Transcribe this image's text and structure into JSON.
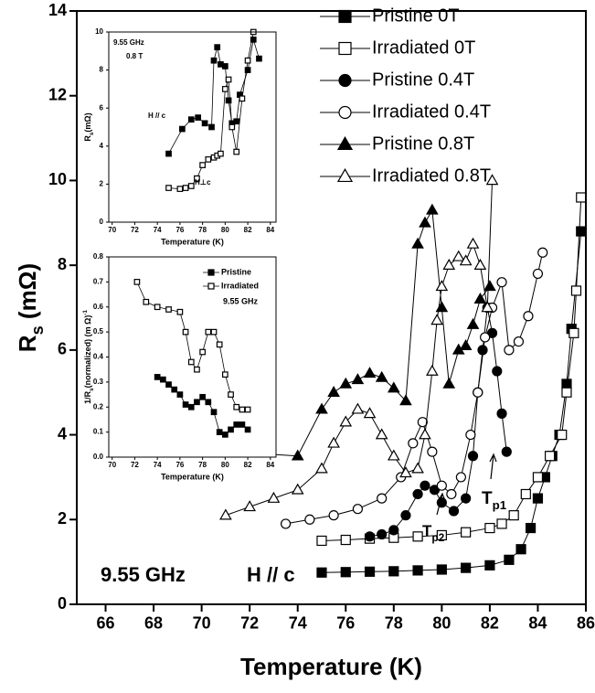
{
  "chart_data": [
    {
      "type": "line",
      "x_label": "Temperature (K)",
      "y_label": [
        {
          "text": "R"
        },
        {
          "text": "s",
          "script": "sub"
        },
        {
          "text": " (mΩ)"
        }
      ],
      "xlim": [
        64.8,
        86
      ],
      "xticks": [
        66,
        68,
        70,
        72,
        74,
        76,
        78,
        80,
        82,
        84,
        86
      ],
      "ylim": [
        0,
        14
      ],
      "yticks": [
        0,
        2,
        4,
        6,
        8,
        10,
        12,
        14
      ],
      "legend": "upper right",
      "annotations": [
        {
          "text": "9.55 GHz"
        },
        {
          "text": "H // c"
        },
        {
          "parts": [
            {
              "text": "T"
            },
            {
              "text": "p2",
              "script": "sub"
            }
          ]
        },
        {
          "parts": [
            {
              "text": "T"
            },
            {
              "text": "p1",
              "script": "sub"
            }
          ]
        }
      ],
      "series": [
        {
          "name": "Pristine 0T",
          "marker": "square",
          "filled": true,
          "color": "#000000",
          "x": [
            75,
            76,
            77,
            78,
            79,
            80,
            81,
            82,
            82.8,
            83.3,
            83.7,
            84,
            84.3,
            84.6,
            84.9,
            85.2,
            85.4,
            85.8
          ],
          "values": [
            0.75,
            0.76,
            0.77,
            0.78,
            0.8,
            0.82,
            0.86,
            0.92,
            1.05,
            1.3,
            1.8,
            2.5,
            3.0,
            3.5,
            4.0,
            5.2,
            6.5,
            8.8
          ]
        },
        {
          "name": "Irradiated 0T",
          "marker": "square",
          "filled": false,
          "color": "#000000",
          "x": [
            75,
            76,
            77,
            78,
            79,
            80,
            81,
            82,
            82.5,
            83,
            83.5,
            84,
            84.5,
            85,
            85.2,
            85.5,
            85.6,
            85.8
          ],
          "values": [
            1.5,
            1.52,
            1.55,
            1.57,
            1.6,
            1.63,
            1.7,
            1.8,
            1.9,
            2.1,
            2.6,
            3.0,
            3.5,
            4.0,
            5.0,
            6.4,
            7.4,
            9.6
          ]
        },
        {
          "name": "Pristine 0.4T",
          "marker": "circle",
          "filled": true,
          "color": "#000000",
          "x": [
            77,
            77.5,
            78,
            78.5,
            79,
            79.3,
            79.7,
            80,
            80.5,
            81,
            81.3,
            81.5,
            81.7,
            81.9,
            82.1,
            82.3,
            82.5,
            82.7
          ],
          "values": [
            1.6,
            1.65,
            1.75,
            2.1,
            2.6,
            2.8,
            2.7,
            2.4,
            2.2,
            2.5,
            3.5,
            5.0,
            6.0,
            7.0,
            6.4,
            5.5,
            4.5,
            3.6
          ]
        },
        {
          "name": "Irradiated 0.4T",
          "marker": "circle",
          "filled": false,
          "color": "#000000",
          "x": [
            73.5,
            74.5,
            75.5,
            76.5,
            77.5,
            78.3,
            78.8,
            79.2,
            79.6,
            80,
            80.4,
            80.8,
            81.2,
            81.5,
            81.8,
            82.1,
            82.5,
            82.8,
            83.2,
            83.6,
            84,
            84.2
          ],
          "values": [
            1.9,
            2.0,
            2.1,
            2.25,
            2.5,
            3.0,
            3.8,
            4.3,
            3.6,
            2.8,
            2.6,
            3.0,
            4.0,
            5.0,
            6.3,
            7.0,
            7.6,
            6.0,
            6.2,
            6.8,
            7.8,
            8.3
          ]
        },
        {
          "name": "Pristine 0.8T",
          "marker": "triangle",
          "filled": true,
          "color": "#000000",
          "x": [
            71.2,
            74,
            75,
            75.5,
            76,
            76.5,
            77,
            77.5,
            78,
            78.5,
            79,
            79.3,
            79.6,
            80,
            80.3,
            80.7,
            81,
            81.3,
            81.6,
            82
          ],
          "values": [
            3.6,
            3.5,
            4.6,
            5.0,
            5.2,
            5.3,
            5.45,
            5.35,
            5.1,
            4.8,
            8.5,
            9.0,
            9.3,
            7.0,
            5.2,
            6.0,
            6.1,
            6.6,
            7.2,
            7.5
          ]
        },
        {
          "name": "Irradiated   0.8T",
          "marker": "triangle",
          "filled": false,
          "color": "#000000",
          "x": [
            71,
            72,
            73,
            74,
            75,
            75.5,
            76,
            76.5,
            77,
            77.5,
            78,
            78.5,
            79,
            79.3,
            79.6,
            79.8,
            80,
            80.3,
            80.7,
            81,
            81.3,
            81.6,
            81.9,
            82.1
          ],
          "values": [
            2.1,
            2.3,
            2.5,
            2.7,
            3.2,
            3.8,
            4.3,
            4.6,
            4.5,
            4.0,
            3.5,
            3.1,
            3.2,
            4.0,
            5.5,
            6.7,
            7.5,
            8.0,
            8.2,
            8.1,
            8.5,
            8.0,
            7.0,
            10.0
          ]
        }
      ]
    },
    {
      "type": "line",
      "x_label": "Temperature (K)",
      "y_label": [
        {
          "text": "R"
        },
        {
          "text": "s",
          "script": "sub"
        },
        {
          "text": "(mΩ)"
        }
      ],
      "xlim": [
        69.7,
        84.5
      ],
      "xticks": [
        70,
        72,
        74,
        76,
        78,
        80,
        82,
        84
      ],
      "ylim": [
        0,
        10
      ],
      "yticks": [
        0,
        2,
        4,
        6,
        8,
        10
      ],
      "annotations": [
        {
          "text": "9.55 GHz"
        },
        {
          "text": "0.8 T"
        },
        {
          "text": "H // c"
        },
        {
          "text": "H⊥c"
        }
      ],
      "series": [
        {
          "marker": "square",
          "filled": true,
          "color": "#000000",
          "x": [
            75,
            76.2,
            77,
            77.6,
            78.2,
            78.8,
            79,
            79.3,
            79.6,
            80,
            80.3,
            80.6,
            81,
            81.3,
            82,
            82.5,
            83
          ],
          "values": [
            3.6,
            4.9,
            5.4,
            5.5,
            5.2,
            5.0,
            8.5,
            9.2,
            8.3,
            8.2,
            6.4,
            5.2,
            5.3,
            6.7,
            8.0,
            9.6,
            8.6
          ]
        },
        {
          "marker": "square",
          "filled": false,
          "color": "#000000",
          "x": [
            75,
            76,
            76.5,
            77,
            77.5,
            78,
            78.5,
            79,
            79.3,
            79.6,
            80,
            80.3,
            80.6,
            81,
            81.5,
            82,
            82.5
          ],
          "values": [
            1.8,
            1.75,
            1.8,
            1.9,
            2.3,
            3.0,
            3.3,
            3.4,
            3.5,
            3.6,
            7.0,
            7.5,
            5.0,
            3.7,
            6.5,
            8.5,
            10
          ]
        }
      ]
    },
    {
      "type": "line",
      "x_label": "Temperature (K)",
      "y_label": [
        {
          "text": "1/R"
        },
        {
          "text": "s",
          "script": "sub"
        },
        {
          "text": "(normalized) (m Ω)"
        },
        {
          "text": "-1",
          "script": "sup"
        }
      ],
      "xlim": [
        69.7,
        84.5
      ],
      "xticks": [
        70,
        72,
        74,
        76,
        78,
        80,
        82,
        84
      ],
      "ylim": [
        0,
        0.8
      ],
      "yticks": [
        {
          "value": 0,
          "label": "0.0"
        },
        0.1,
        0.2,
        0.3,
        0.4,
        0.5,
        0.6,
        0.7,
        0.8
      ],
      "legend": "upper right",
      "annotations": [
        {
          "text": "9.55 GHz"
        }
      ],
      "series": [
        {
          "name": "Pristine",
          "marker": "square",
          "filled": true,
          "color": "#000000",
          "x": [
            74,
            74.5,
            75,
            75.5,
            76,
            76.5,
            77,
            77.5,
            78,
            78.5,
            79,
            79.5,
            80,
            80.5,
            81,
            81.5,
            82
          ],
          "values": [
            0.32,
            0.31,
            0.29,
            0.27,
            0.25,
            0.21,
            0.2,
            0.22,
            0.24,
            0.22,
            0.18,
            0.1,
            0.09,
            0.11,
            0.13,
            0.13,
            0.11
          ]
        },
        {
          "name": "Irradiated",
          "marker": "square",
          "filled": false,
          "color": "#000000",
          "x": [
            72.2,
            73,
            74,
            75,
            76,
            76.5,
            77,
            77.5,
            78,
            78.5,
            79,
            79.5,
            80,
            80.5,
            81,
            81.5,
            82
          ],
          "values": [
            0.7,
            0.62,
            0.6,
            0.59,
            0.58,
            0.5,
            0.38,
            0.35,
            0.42,
            0.5,
            0.5,
            0.45,
            0.33,
            0.25,
            0.2,
            0.19,
            0.19
          ]
        }
      ]
    }
  ]
}
